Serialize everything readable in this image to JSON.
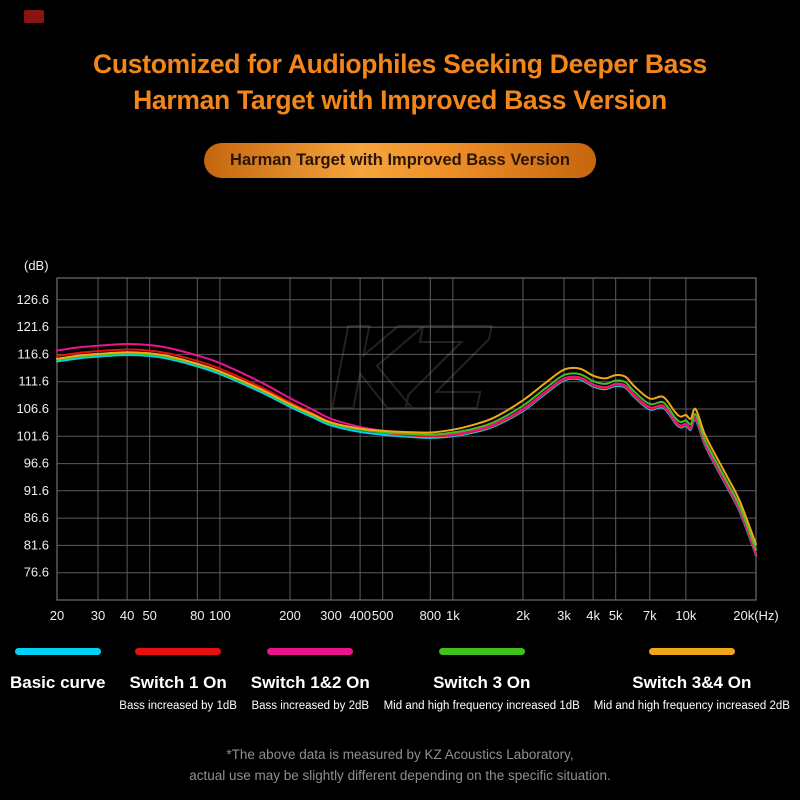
{
  "header": {
    "title_line1": "Customized for Audiophiles Seeking Deeper Bass",
    "title_line2": "Harman Target with Improved Bass Version",
    "badge": "Harman Target with Improved Bass Version"
  },
  "colors": {
    "accent_orange": "#f2861b",
    "background": "#000000",
    "grid": "#5c5c5c"
  },
  "chart_data": {
    "type": "line",
    "x_scale": "log",
    "unit_label": "(dB)",
    "watermark": "KZ",
    "x_range": [
      20,
      20000
    ],
    "y_range": [
      71.6,
      130.6
    ],
    "y_ticks": [
      126.6,
      121.6,
      116.6,
      111.6,
      106.6,
      101.6,
      96.6,
      91.6,
      86.6,
      81.6,
      76.6
    ],
    "x_ticks": [
      {
        "f": 20,
        "label": "20"
      },
      {
        "f": 30,
        "label": "30"
      },
      {
        "f": 40,
        "label": "40"
      },
      {
        "f": 50,
        "label": "50"
      },
      {
        "f": 80,
        "label": "80"
      },
      {
        "f": 100,
        "label": "100"
      },
      {
        "f": 200,
        "label": "200"
      },
      {
        "f": 300,
        "label": "300"
      },
      {
        "f": 400,
        "label": "400"
      },
      {
        "f": 500,
        "label": "500"
      },
      {
        "f": 800,
        "label": "800"
      },
      {
        "f": 1000,
        "label": "1k"
      },
      {
        "f": 2000,
        "label": "2k"
      },
      {
        "f": 3000,
        "label": "3k"
      },
      {
        "f": 4000,
        "label": "4k"
      },
      {
        "f": 5000,
        "label": "5k"
      },
      {
        "f": 7000,
        "label": "7k"
      },
      {
        "f": 10000,
        "label": "10k"
      },
      {
        "f": 20000,
        "label": "20k(Hz)"
      }
    ],
    "frequencies": [
      20,
      25,
      30,
      40,
      50,
      60,
      80,
      100,
      150,
      200,
      250,
      300,
      400,
      500,
      600,
      800,
      1000,
      1200,
      1500,
      2000,
      2500,
      3000,
      3500,
      4000,
      4500,
      5000,
      5500,
      6000,
      7000,
      8000,
      9000,
      9500,
      10000,
      10500,
      11000,
      12000,
      13000,
      15000,
      17000,
      20000
    ],
    "series": [
      {
        "name": "Basic curve",
        "color": "#00d2f5",
        "values": [
          115.3,
          115.9,
          116.2,
          116.5,
          116.3,
          115.8,
          114.4,
          113.0,
          109.7,
          107.0,
          105.1,
          103.6,
          102.4,
          101.9,
          101.6,
          101.3,
          101.6,
          102.2,
          103.4,
          106.2,
          109.4,
          111.8,
          112.0,
          110.7,
          110.2,
          110.8,
          110.5,
          108.8,
          106.5,
          106.8,
          104.0,
          103.2,
          103.5,
          102.8,
          104.6,
          100.2,
          97.2,
          92.3,
          87.8,
          79.8
        ]
      },
      {
        "name": "Switch 1 On",
        "color": "#e8100f",
        "values": [
          116.3,
          116.9,
          117.2,
          117.5,
          117.3,
          116.8,
          115.4,
          114.0,
          110.6,
          107.8,
          105.8,
          104.2,
          102.9,
          102.3,
          101.9,
          101.6,
          101.8,
          102.4,
          103.6,
          106.4,
          109.6,
          112.0,
          112.2,
          110.9,
          110.4,
          111.0,
          110.7,
          109.0,
          106.7,
          107.0,
          104.2,
          103.4,
          103.7,
          103.0,
          104.8,
          100.4,
          97.4,
          92.5,
          88.0,
          80.0
        ]
      },
      {
        "name": "Switch 1&2 On",
        "color": "#ea148e",
        "values": [
          117.3,
          117.9,
          118.2,
          118.5,
          118.3,
          117.8,
          116.4,
          115.0,
          111.5,
          108.6,
          106.5,
          104.8,
          103.3,
          102.6,
          102.2,
          101.8,
          102.0,
          102.6,
          103.8,
          106.6,
          109.8,
          112.2,
          112.4,
          111.1,
          110.6,
          111.2,
          110.9,
          109.2,
          106.9,
          107.2,
          104.4,
          103.6,
          103.9,
          103.2,
          105.0,
          100.6,
          97.6,
          92.7,
          88.2,
          80.2
        ]
      },
      {
        "name": "Switch 3 On",
        "color": "#3fc01e",
        "values": [
          115.6,
          116.2,
          116.5,
          116.8,
          116.6,
          116.1,
          114.7,
          113.3,
          110.0,
          107.3,
          105.4,
          103.9,
          102.8,
          102.3,
          102.1,
          101.9,
          102.3,
          102.9,
          104.2,
          107.2,
          110.4,
          112.8,
          113.0,
          111.7,
          111.2,
          111.8,
          111.5,
          109.8,
          107.5,
          107.8,
          105.0,
          104.2,
          104.5,
          103.8,
          105.6,
          101.2,
          98.2,
          93.3,
          88.8,
          80.8
        ]
      },
      {
        "name": "Switch 3&4 On",
        "color": "#f2a71b",
        "values": [
          115.8,
          116.4,
          116.7,
          117.0,
          116.8,
          116.3,
          114.9,
          113.5,
          110.2,
          107.5,
          105.6,
          104.1,
          103.0,
          102.6,
          102.4,
          102.3,
          102.8,
          103.6,
          105.0,
          108.2,
          111.4,
          113.8,
          114.0,
          112.7,
          112.2,
          112.8,
          112.5,
          110.8,
          108.5,
          108.8,
          106.0,
          105.2,
          105.5,
          104.8,
          106.6,
          102.2,
          99.2,
          94.3,
          89.8,
          81.8
        ]
      }
    ]
  },
  "legend": {
    "items": [
      {
        "label": "Basic curve",
        "sub": "",
        "color": "#00d2f5"
      },
      {
        "label": "Switch 1 On",
        "sub": "Bass increased by 1dB",
        "color": "#e8100f"
      },
      {
        "label": "Switch 1&2 On",
        "sub": "Bass increased by 2dB",
        "color": "#ea148e"
      },
      {
        "label": "Switch 3 On",
        "sub": "Mid and high frequency increased 1dB",
        "color": "#3fc01e"
      },
      {
        "label": "Switch 3&4 On",
        "sub": "Mid and high frequency increased 2dB",
        "color": "#f2a71b"
      }
    ]
  },
  "footer": {
    "line1": "*The above data is measured by KZ Acoustics Laboratory,",
    "line2": "actual use may be slightly different depending on the specific situation."
  }
}
